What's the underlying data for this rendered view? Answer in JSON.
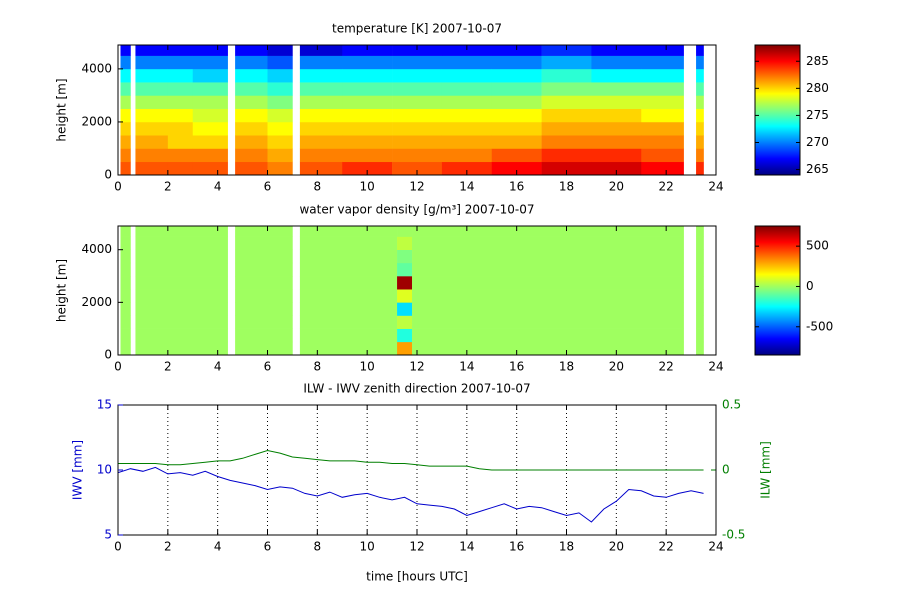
{
  "chart_data": [
    {
      "type": "heatmap",
      "title": "temperature [K] 2007-10-07",
      "ylabel": "height [m]",
      "colormap": "jet",
      "xlim": [
        0,
        24
      ],
      "xticks": [
        0,
        2,
        4,
        6,
        8,
        10,
        12,
        14,
        16,
        18,
        20,
        22,
        24
      ],
      "ylim": [
        0,
        4900
      ],
      "yticks": [
        0,
        2000,
        4000
      ],
      "clim": [
        264,
        288
      ],
      "cticks": [
        265,
        270,
        275,
        280,
        285
      ],
      "xbins": [
        0.1,
        0.5,
        0.7,
        2,
        3,
        4.4,
        4.7,
        6,
        7.0,
        7.3,
        9,
        11,
        13,
        15,
        17,
        19,
        21,
        22.7,
        23.2,
        23.5
      ],
      "ybins": [
        0,
        500,
        1000,
        1500,
        2000,
        2500,
        3000,
        3500,
        4000,
        4500,
        4900
      ],
      "values": [
        [
          283,
          282,
          281,
          280,
          279,
          277,
          275,
          273,
          270,
          267
        ],
        null,
        [
          283,
          282,
          281,
          280,
          279,
          277,
          275,
          273,
          270,
          267
        ],
        [
          283,
          282,
          280,
          280,
          279,
          277,
          275,
          273,
          270,
          267
        ],
        [
          283,
          282,
          280,
          279,
          278,
          277,
          275,
          272,
          270,
          267
        ],
        null,
        [
          283,
          282,
          281,
          280,
          279,
          277,
          275,
          273,
          270,
          267
        ],
        [
          282,
          281,
          280,
          279,
          278,
          276,
          274,
          272,
          269,
          266
        ],
        null,
        [
          283,
          282,
          281,
          280,
          279,
          277,
          275,
          273,
          270,
          266
        ],
        [
          284,
          282,
          281,
          280,
          279,
          277,
          275,
          273,
          270,
          267
        ],
        [
          283,
          282,
          281,
          280,
          279,
          277,
          275,
          273,
          270,
          267
        ],
        [
          284,
          282,
          281,
          280,
          279,
          277,
          275,
          273,
          270,
          267
        ],
        [
          285,
          283,
          281,
          280,
          279,
          277,
          275,
          273,
          270,
          267
        ],
        [
          286,
          284,
          282,
          281,
          280,
          278,
          276,
          274,
          271,
          268
        ],
        [
          286,
          284,
          282,
          281,
          280,
          278,
          276,
          273,
          270,
          267
        ],
        [
          285,
          283,
          282,
          281,
          279,
          278,
          276,
          273,
          270,
          267
        ],
        null,
        [
          284,
          282,
          281,
          280,
          279,
          277,
          275,
          273,
          270,
          267
        ]
      ]
    },
    {
      "type": "heatmap",
      "title": "water vapor density [g/m³] 2007-10-07",
      "ylabel": "height [m]",
      "colormap": "jet",
      "xlim": [
        0,
        24
      ],
      "xticks": [
        0,
        2,
        4,
        6,
        8,
        10,
        12,
        14,
        16,
        18,
        20,
        22,
        24
      ],
      "ylim": [
        0,
        4900
      ],
      "yticks": [
        0,
        2000,
        4000
      ],
      "clim": [
        -850,
        750
      ],
      "cticks": [
        -500,
        0,
        500
      ],
      "xbins": [
        0.1,
        0.5,
        0.7,
        4.4,
        4.7,
        7.0,
        7.3,
        11.2,
        11.8,
        22.7,
        23.2,
        23.5
      ],
      "ybins": [
        0,
        500,
        1000,
        1500,
        2000,
        2500,
        3000,
        3500,
        4000,
        4500,
        4900
      ],
      "values": [
        [
          0,
          0,
          0,
          0,
          0,
          0,
          0,
          0,
          0,
          0
        ],
        null,
        [
          0,
          0,
          0,
          0,
          0,
          0,
          0,
          0,
          0,
          0
        ],
        null,
        [
          0,
          0,
          0,
          0,
          0,
          0,
          0,
          0,
          0,
          0
        ],
        null,
        [
          0,
          0,
          0,
          0,
          0,
          0,
          0,
          0,
          0,
          0
        ],
        [
          300,
          -200,
          50,
          -300,
          100,
          700,
          -100,
          -50,
          50,
          0
        ],
        [
          0,
          0,
          0,
          0,
          0,
          0,
          0,
          0,
          0,
          0
        ],
        null,
        [
          0,
          0,
          0,
          0,
          0,
          0,
          0,
          0,
          0,
          0
        ]
      ]
    },
    {
      "type": "line",
      "title": "ILW - IWV zenith direction 2007-10-07",
      "xlabel": "time [hours UTC]",
      "ylabel": "IWV [mm]",
      "y2label": "ILW [mm]",
      "grid": true,
      "xlim": [
        0,
        24
      ],
      "xticks": [
        0,
        2,
        4,
        6,
        8,
        10,
        12,
        14,
        16,
        18,
        20,
        22,
        24
      ],
      "ylim": [
        5,
        15
      ],
      "yticks": [
        5,
        10,
        15
      ],
      "y2lim": [
        -0.5,
        0.5
      ],
      "y2ticks": [
        -0.5,
        0,
        0.5
      ],
      "x": [
        0,
        0.5,
        1,
        1.5,
        2,
        2.5,
        3,
        3.5,
        4,
        4.5,
        5,
        5.5,
        6,
        6.5,
        7,
        7.5,
        8,
        8.5,
        9,
        9.5,
        10,
        10.5,
        11,
        11.5,
        12,
        12.5,
        13,
        13.5,
        14,
        14.5,
        15,
        15.5,
        16,
        16.5,
        17,
        17.5,
        18,
        18.5,
        19,
        19.5,
        20,
        20.5,
        21,
        21.5,
        22,
        22.5,
        23,
        23.5
      ],
      "series": [
        {
          "color": "#0000cc",
          "values": [
            9.8,
            10.1,
            9.9,
            10.2,
            9.7,
            9.8,
            9.6,
            9.9,
            9.5,
            9.2,
            9.0,
            8.8,
            8.5,
            8.7,
            8.6,
            8.2,
            8.0,
            8.3,
            7.9,
            8.1,
            8.2,
            7.9,
            7.7,
            7.9,
            7.4,
            7.3,
            7.2,
            7.0,
            6.5,
            6.8,
            7.1,
            7.4,
            7.0,
            7.2,
            7.1,
            6.8,
            6.5,
            6.7,
            6.0,
            7.0,
            7.6,
            8.5,
            8.4,
            8.0,
            7.9,
            8.2,
            8.4,
            8.2
          ]
        },
        {
          "color": "#007f00",
          "axis": "y2",
          "values": [
            0.05,
            0.05,
            0.05,
            0.05,
            0.04,
            0.04,
            0.05,
            0.06,
            0.07,
            0.07,
            0.09,
            0.12,
            0.15,
            0.13,
            0.1,
            0.09,
            0.08,
            0.07,
            0.07,
            0.07,
            0.06,
            0.06,
            0.05,
            0.05,
            0.04,
            0.03,
            0.03,
            0.03,
            0.03,
            0.01,
            0,
            0,
            0,
            0,
            0,
            0,
            0,
            0,
            0,
            0,
            0,
            0,
            0,
            0,
            0,
            0,
            0,
            0
          ]
        }
      ]
    }
  ]
}
